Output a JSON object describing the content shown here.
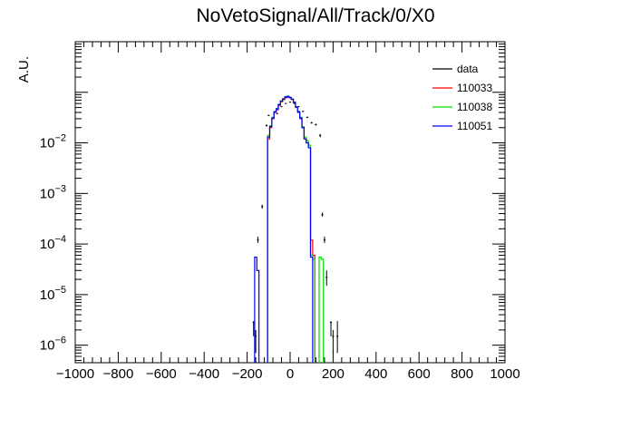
{
  "chart_data": {
    "type": "line",
    "title": "NoVetoSignal/All/Track/0/X0",
    "xlabel": "",
    "ylabel": "A.U.",
    "xlim": [
      -1000,
      1000
    ],
    "ylim": [
      4.5e-07,
      1.0
    ],
    "yscale": "log",
    "grid": false,
    "legend_position": "top-right",
    "x_ticks": [
      -1000,
      -800,
      -600,
      -400,
      -200,
      0,
      200,
      400,
      600,
      800,
      1000
    ],
    "x_tick_labels": [
      "−1000",
      "−800",
      "−600",
      "−400",
      "−200",
      "0",
      "200",
      "400",
      "600",
      "800",
      "1000"
    ],
    "y_ticks": [
      {
        "value": 1e-06,
        "base": "10",
        "exp": "−6"
      },
      {
        "value": 1e-05,
        "base": "10",
        "exp": "−5"
      },
      {
        "value": 0.0001,
        "base": "10",
        "exp": "−4"
      },
      {
        "value": 0.001,
        "base": "10",
        "exp": "−3"
      },
      {
        "value": 0.01,
        "base": "10",
        "exp": "−2"
      }
    ],
    "bin_width": 20,
    "series": [
      {
        "name": "data",
        "color": "#000000",
        "style": "points",
        "points": [
          {
            "x": -170,
            "y": 2.8e-06,
            "err": [
              1.5e-06,
              3e-06
            ]
          },
          {
            "x": -160,
            "y": 1.5e-06,
            "err": [
              7e-07,
              2e-06
            ]
          },
          {
            "x": -150,
            "y": 0.00012,
            "err": [
              0.000105,
              0.00014
            ]
          },
          {
            "x": -130,
            "y": 0.00055,
            "err": [
              0.0005,
              0.0006
            ]
          },
          {
            "x": -110,
            "y": 0.022,
            "err": [
              0.021,
              0.023
            ]
          },
          {
            "x": -100,
            "y": 0.035,
            "err": [
              0.034,
              0.036
            ]
          },
          {
            "x": -80,
            "y": 0.031,
            "err": [
              0.03,
              0.032
            ]
          },
          {
            "x": -60,
            "y": 0.038,
            "err": [
              0.037,
              0.039
            ]
          },
          {
            "x": -40,
            "y": 0.052,
            "err": [
              0.051,
              0.053
            ]
          },
          {
            "x": -20,
            "y": 0.06,
            "err": [
              0.059,
              0.061
            ]
          },
          {
            "x": 0,
            "y": 0.064,
            "err": [
              0.063,
              0.065
            ]
          },
          {
            "x": 20,
            "y": 0.06,
            "err": [
              0.059,
              0.061
            ]
          },
          {
            "x": 40,
            "y": 0.052,
            "err": [
              0.051,
              0.053
            ]
          },
          {
            "x": 60,
            "y": 0.042,
            "err": [
              0.041,
              0.043
            ]
          },
          {
            "x": 80,
            "y": 0.032,
            "err": [
              0.031,
              0.033
            ]
          },
          {
            "x": 100,
            "y": 0.025,
            "err": [
              0.024,
              0.026
            ]
          },
          {
            "x": 120,
            "y": 0.023,
            "err": [
              0.022,
              0.024
            ]
          },
          {
            "x": 140,
            "y": 0.014,
            "err": [
              0.013,
              0.015
            ]
          },
          {
            "x": 150,
            "y": 0.00038,
            "err": [
              0.00035,
              0.00042
            ]
          },
          {
            "x": 160,
            "y": 0.00012,
            "err": [
              0.000105,
              0.00014
            ]
          },
          {
            "x": 170,
            "y": 2.2e-05,
            "err": [
              1.5e-05,
              3e-05
            ]
          },
          {
            "x": 190,
            "y": 2.8e-06,
            "err": [
              1.5e-06,
              3e-06
            ]
          },
          {
            "x": 200,
            "y": 1.5e-06,
            "err": [
              7e-07,
              2e-06
            ]
          },
          {
            "x": 220,
            "y": 1.5e-06,
            "err": [
              7e-07,
              3e-06
            ]
          }
        ]
      },
      {
        "name": "110033",
        "color": "#ff0000",
        "style": "step",
        "bins": [
          {
            "x": -100,
            "y": 0.012
          },
          {
            "x": -90,
            "y": 0.02
          },
          {
            "x": -80,
            "y": 0.03
          },
          {
            "x": -70,
            "y": 0.04
          },
          {
            "x": -60,
            "y": 0.045
          },
          {
            "x": -50,
            "y": 0.055
          },
          {
            "x": -40,
            "y": 0.065
          },
          {
            "x": -30,
            "y": 0.072
          },
          {
            "x": -20,
            "y": 0.078
          },
          {
            "x": -10,
            "y": 0.08
          },
          {
            "x": 0,
            "y": 0.078
          },
          {
            "x": 10,
            "y": 0.072
          },
          {
            "x": 20,
            "y": 0.062
          },
          {
            "x": 30,
            "y": 0.05
          },
          {
            "x": 40,
            "y": 0.04
          },
          {
            "x": 50,
            "y": 0.03
          },
          {
            "x": 60,
            "y": 0.02
          },
          {
            "x": 70,
            "y": 0.012
          },
          {
            "x": 80,
            "y": 0.01
          },
          {
            "x": 90,
            "y": 0.008
          },
          {
            "x": 100,
            "y": 0.00012
          },
          {
            "x": 110,
            "y": 6e-05
          }
        ]
      },
      {
        "name": "110038",
        "color": "#00dd00",
        "style": "step",
        "bins": [
          {
            "x": -100,
            "y": 0.014
          },
          {
            "x": -90,
            "y": 0.022
          },
          {
            "x": -80,
            "y": 0.032
          },
          {
            "x": -70,
            "y": 0.042
          },
          {
            "x": -60,
            "y": 0.048
          },
          {
            "x": -50,
            "y": 0.058
          },
          {
            "x": -40,
            "y": 0.068
          },
          {
            "x": -30,
            "y": 0.075
          },
          {
            "x": -20,
            "y": 0.082
          },
          {
            "x": -10,
            "y": 0.084
          },
          {
            "x": 0,
            "y": 0.08
          },
          {
            "x": 10,
            "y": 0.074
          },
          {
            "x": 20,
            "y": 0.064
          },
          {
            "x": 30,
            "y": 0.052
          },
          {
            "x": 40,
            "y": 0.042
          },
          {
            "x": 50,
            "y": 0.032
          },
          {
            "x": 60,
            "y": 0.021
          },
          {
            "x": 70,
            "y": 0.013
          },
          {
            "x": 80,
            "y": 0.011
          },
          {
            "x": 90,
            "y": 0.009
          },
          {
            "x": 100,
            "y": 6e-05
          },
          {
            "x": 110,
            "y": 5e-05
          },
          {
            "x": 140,
            "y": 5.5e-05
          },
          {
            "x": 150,
            "y": 5e-05
          }
        ]
      },
      {
        "name": "110051",
        "color": "#0000ff",
        "style": "step",
        "bins": [
          {
            "x": -160,
            "y": 5.5e-05
          },
          {
            "x": -150,
            "y": 3e-05
          },
          {
            "x": -100,
            "y": 0.013
          },
          {
            "x": -90,
            "y": 0.021
          },
          {
            "x": -80,
            "y": 0.031
          },
          {
            "x": -70,
            "y": 0.041
          },
          {
            "x": -60,
            "y": 0.047
          },
          {
            "x": -50,
            "y": 0.057
          },
          {
            "x": -40,
            "y": 0.067
          },
          {
            "x": -30,
            "y": 0.074
          },
          {
            "x": -20,
            "y": 0.081
          },
          {
            "x": -10,
            "y": 0.083
          },
          {
            "x": 0,
            "y": 0.079
          },
          {
            "x": 10,
            "y": 0.073
          },
          {
            "x": 20,
            "y": 0.063
          },
          {
            "x": 30,
            "y": 0.051
          },
          {
            "x": 40,
            "y": 0.041
          },
          {
            "x": 50,
            "y": 0.031
          },
          {
            "x": 60,
            "y": 0.02
          },
          {
            "x": 70,
            "y": 0.012
          },
          {
            "x": 80,
            "y": 0.01
          },
          {
            "x": 90,
            "y": 0.008
          },
          {
            "x": 100,
            "y": 5.5e-05
          }
        ]
      }
    ]
  }
}
